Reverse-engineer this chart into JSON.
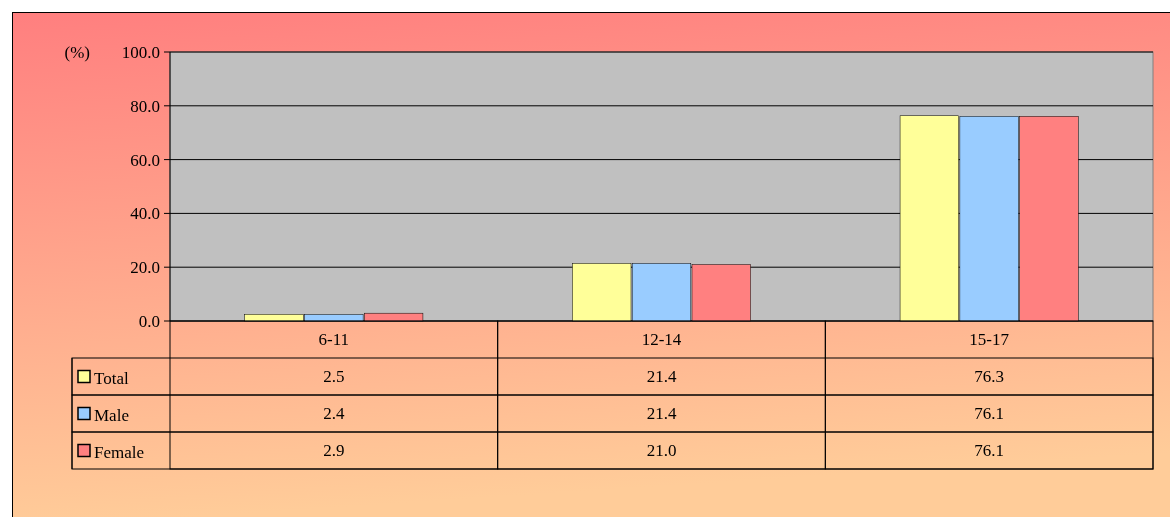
{
  "chart_data": {
    "type": "bar",
    "ylabel": "(%)",
    "categories": [
      "6-11",
      "12-14",
      "15-17"
    ],
    "series": [
      {
        "name": "Total",
        "color": "#ffff99",
        "values": [
          2.5,
          21.4,
          76.3
        ],
        "value_labels": [
          "2.5",
          "21.4",
          "76.3"
        ]
      },
      {
        "name": "Male",
        "color": "#99ccff",
        "values": [
          2.4,
          21.4,
          76.1
        ],
        "value_labels": [
          "2.4",
          "21.4",
          "76.1"
        ]
      },
      {
        "name": "Female",
        "color": "#ff8080",
        "values": [
          2.9,
          21.0,
          76.1
        ],
        "value_labels": [
          "2.9",
          "21.0",
          "76.1"
        ]
      }
    ],
    "ylim": [
      0,
      100
    ],
    "yticks": [
      {
        "value": 0,
        "label": "0.0"
      },
      {
        "value": 20,
        "label": "20.0"
      },
      {
        "value": 40,
        "label": "40.0"
      },
      {
        "value": 60,
        "label": "60.0"
      },
      {
        "value": 80,
        "label": "80.0"
      },
      {
        "value": 100,
        "label": "100.0"
      }
    ],
    "grid": "y",
    "legend": "bottom"
  }
}
